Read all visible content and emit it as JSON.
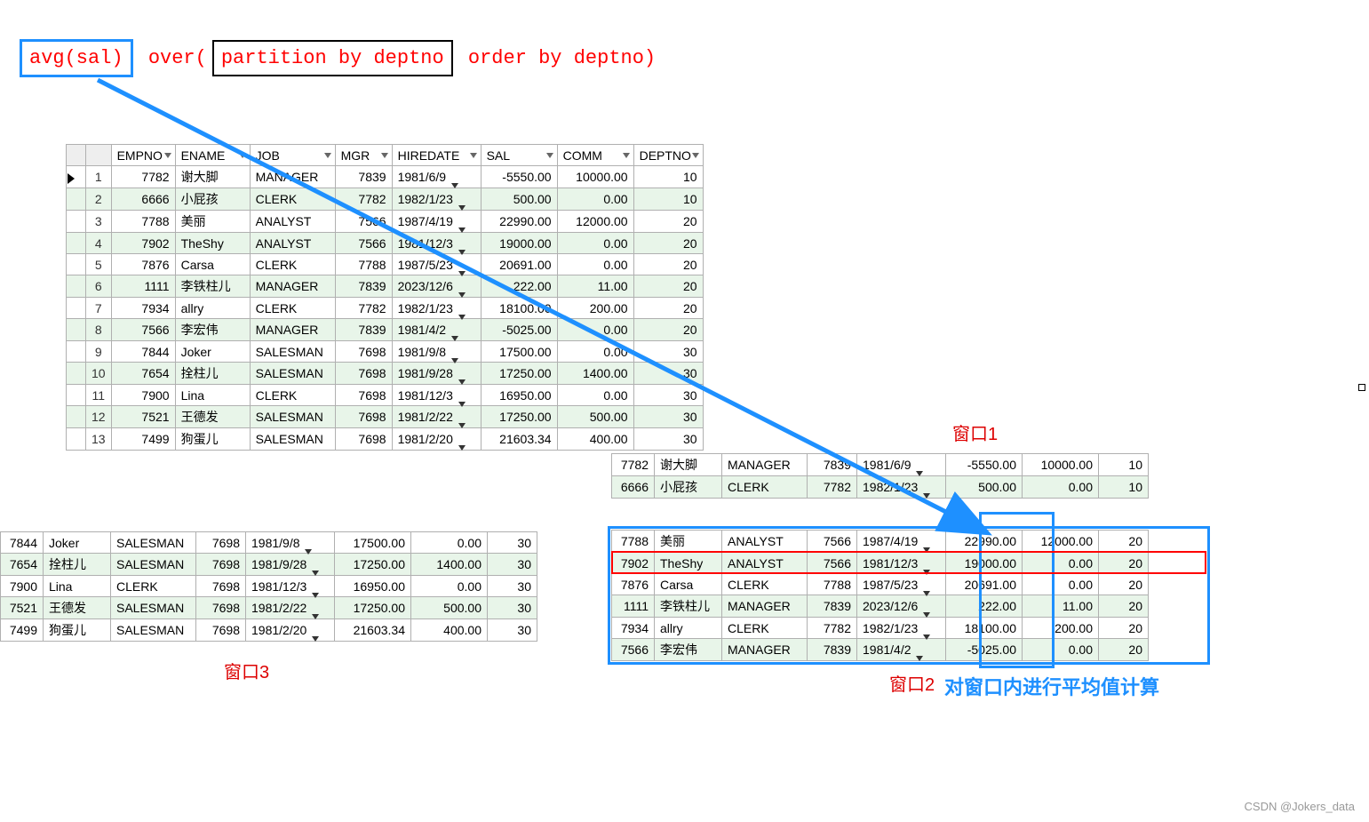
{
  "sql": {
    "avg": "avg(sal)",
    "over": "over(",
    "partition": "partition by deptno",
    "orderby": " order by deptno)"
  },
  "columns": [
    "EMPNO",
    "ENAME",
    "JOB",
    "MGR",
    "HIREDATE",
    "SAL",
    "COMM",
    "DEPTNO"
  ],
  "colwidths_main": [
    72,
    84,
    96,
    64,
    100,
    86,
    86,
    78
  ],
  "main_rows": [
    {
      "n": 1,
      "empno": 7782,
      "ename": "谢大脚",
      "job": "MANAGER",
      "mgr": 7839,
      "hiredate": "1981/6/9",
      "sal": "-5550.00",
      "comm": "10000.00",
      "deptno": 10
    },
    {
      "n": 2,
      "empno": 6666,
      "ename": "小屁孩",
      "job": "CLERK",
      "mgr": 7782,
      "hiredate": "1982/1/23",
      "sal": "500.00",
      "comm": "0.00",
      "deptno": 10
    },
    {
      "n": 3,
      "empno": 7788,
      "ename": "美丽",
      "job": "ANALYST",
      "mgr": 7566,
      "hiredate": "1987/4/19",
      "sal": "22990.00",
      "comm": "12000.00",
      "deptno": 20
    },
    {
      "n": 4,
      "empno": 7902,
      "ename": "TheShy",
      "job": "ANALYST",
      "mgr": 7566,
      "hiredate": "1981/12/3",
      "sal": "19000.00",
      "comm": "0.00",
      "deptno": 20
    },
    {
      "n": 5,
      "empno": 7876,
      "ename": "Carsa",
      "job": "CLERK",
      "mgr": 7788,
      "hiredate": "1987/5/23",
      "sal": "20691.00",
      "comm": "0.00",
      "deptno": 20
    },
    {
      "n": 6,
      "empno": 1111,
      "ename": "李铁柱儿",
      "job": "MANAGER",
      "mgr": 7839,
      "hiredate": "2023/12/6",
      "sal": "222.00",
      "comm": "11.00",
      "deptno": 20
    },
    {
      "n": 7,
      "empno": 7934,
      "ename": "allry",
      "job": "CLERK",
      "mgr": 7782,
      "hiredate": "1982/1/23",
      "sal": "18100.00",
      "comm": "200.00",
      "deptno": 20
    },
    {
      "n": 8,
      "empno": 7566,
      "ename": "李宏伟",
      "job": "MANAGER",
      "mgr": 7839,
      "hiredate": "1981/4/2",
      "sal": "-5025.00",
      "comm": "0.00",
      "deptno": 20
    },
    {
      "n": 9,
      "empno": 7844,
      "ename": "Joker",
      "job": "SALESMAN",
      "mgr": 7698,
      "hiredate": "1981/9/8",
      "sal": "17500.00",
      "comm": "0.00",
      "deptno": 30
    },
    {
      "n": 10,
      "empno": 7654,
      "ename": "拴柱儿",
      "job": "SALESMAN",
      "mgr": 7698,
      "hiredate": "1981/9/28",
      "sal": "17250.00",
      "comm": "1400.00",
      "deptno": 30
    },
    {
      "n": 11,
      "empno": 7900,
      "ename": "Lina",
      "job": "CLERK",
      "mgr": 7698,
      "hiredate": "1981/12/3",
      "sal": "16950.00",
      "comm": "0.00",
      "deptno": 30
    },
    {
      "n": 12,
      "empno": 7521,
      "ename": "王德发",
      "job": "SALESMAN",
      "mgr": 7698,
      "hiredate": "1981/2/22",
      "sal": "17250.00",
      "comm": "500.00",
      "deptno": 30
    },
    {
      "n": 13,
      "empno": 7499,
      "ename": "狗蛋儿",
      "job": "SALESMAN",
      "mgr": 7698,
      "hiredate": "1981/2/20",
      "sal": "21603.34",
      "comm": "400.00",
      "deptno": 30
    }
  ],
  "colwidths_sub": [
    48,
    76,
    96,
    56,
    100,
    86,
    86,
    56
  ],
  "window1_rows": [
    {
      "empno": 7782,
      "ename": "谢大脚",
      "job": "MANAGER",
      "mgr": 7839,
      "hiredate": "1981/6/9",
      "sal": "-5550.00",
      "comm": "10000.00",
      "deptno": 10
    },
    {
      "empno": 6666,
      "ename": "小屁孩",
      "job": "CLERK",
      "mgr": 7782,
      "hiredate": "1982/1/23",
      "sal": "500.00",
      "comm": "0.00",
      "deptno": 10
    }
  ],
  "window2_rows": [
    {
      "empno": 7788,
      "ename": "美丽",
      "job": "ANALYST",
      "mgr": 7566,
      "hiredate": "1987/4/19",
      "sal": "22990.00",
      "comm": "12000.00",
      "deptno": 20
    },
    {
      "empno": 7902,
      "ename": "TheShy",
      "job": "ANALYST",
      "mgr": 7566,
      "hiredate": "1981/12/3",
      "sal": "19000.00",
      "comm": "0.00",
      "deptno": 20
    },
    {
      "empno": 7876,
      "ename": "Carsa",
      "job": "CLERK",
      "mgr": 7788,
      "hiredate": "1987/5/23",
      "sal": "20691.00",
      "comm": "0.00",
      "deptno": 20
    },
    {
      "empno": 1111,
      "ename": "李铁柱儿",
      "job": "MANAGER",
      "mgr": 7839,
      "hiredate": "2023/12/6",
      "sal": "222.00",
      "comm": "11.00",
      "deptno": 20
    },
    {
      "empno": 7934,
      "ename": "allry",
      "job": "CLERK",
      "mgr": 7782,
      "hiredate": "1982/1/23",
      "sal": "18100.00",
      "comm": "200.00",
      "deptno": 20
    },
    {
      "empno": 7566,
      "ename": "李宏伟",
      "job": "MANAGER",
      "mgr": 7839,
      "hiredate": "1981/4/2",
      "sal": "-5025.00",
      "comm": "0.00",
      "deptno": 20
    }
  ],
  "window3_rows": [
    {
      "empno": 7844,
      "ename": "Joker",
      "job": "SALESMAN",
      "mgr": 7698,
      "hiredate": "1981/9/8",
      "sal": "17500.00",
      "comm": "0.00",
      "deptno": 30
    },
    {
      "empno": 7654,
      "ename": "拴柱儿",
      "job": "SALESMAN",
      "mgr": 7698,
      "hiredate": "1981/9/28",
      "sal": "17250.00",
      "comm": "1400.00",
      "deptno": 30
    },
    {
      "empno": 7900,
      "ename": "Lina",
      "job": "CLERK",
      "mgr": 7698,
      "hiredate": "1981/12/3",
      "sal": "16950.00",
      "comm": "0.00",
      "deptno": 30
    },
    {
      "empno": 7521,
      "ename": "王德发",
      "job": "SALESMAN",
      "mgr": 7698,
      "hiredate": "1981/2/22",
      "sal": "17250.00",
      "comm": "500.00",
      "deptno": 30
    },
    {
      "empno": 7499,
      "ename": "狗蛋儿",
      "job": "SALESMAN",
      "mgr": 7698,
      "hiredate": "1981/2/20",
      "sal": "21603.34",
      "comm": "400.00",
      "deptno": 30
    }
  ],
  "labels": {
    "w1": "窗口1",
    "w2": "窗口2",
    "w3": "窗口3",
    "blue": "对窗口内进行平均值计算",
    "watermark": "CSDN @Jokers_data"
  },
  "colors": {
    "blue": "#1e90ff",
    "red": "#ff0000",
    "evenrow": "#e8f5e9",
    "border": "#b0b0b0"
  }
}
